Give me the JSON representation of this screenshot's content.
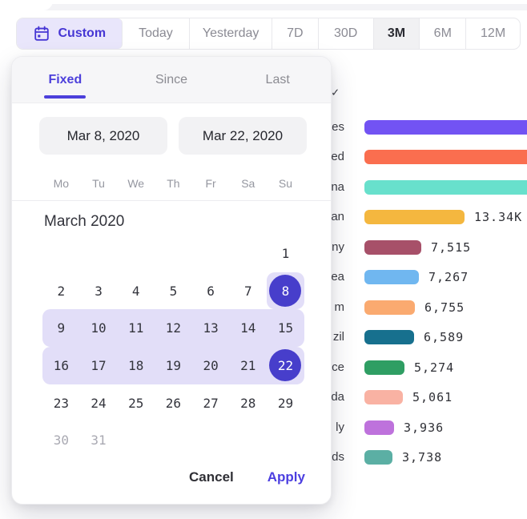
{
  "toolbar": {
    "custom_label": "Custom",
    "presets": [
      {
        "label": "Today",
        "active": false
      },
      {
        "label": "Yesterday",
        "active": false
      },
      {
        "label": "7D",
        "active": false
      },
      {
        "label": "30D",
        "active": false
      },
      {
        "label": "3M",
        "active": true
      },
      {
        "label": "6M",
        "active": false
      },
      {
        "label": "12M",
        "active": false
      }
    ]
  },
  "datepicker": {
    "tabs": [
      {
        "label": "Fixed",
        "active": true
      },
      {
        "label": "Since",
        "active": false
      },
      {
        "label": "Last",
        "active": false
      }
    ],
    "from_date": "Mar 8, 2020",
    "to_date": "Mar 22, 2020",
    "weekdays": [
      "Mo",
      "Tu",
      "We",
      "Th",
      "Fr",
      "Sa",
      "Su"
    ],
    "month_title": "March 2020",
    "weeks": [
      [
        null,
        null,
        null,
        null,
        null,
        null,
        1
      ],
      [
        2,
        3,
        4,
        5,
        6,
        7,
        8
      ],
      [
        9,
        10,
        11,
        12,
        13,
        14,
        15
      ],
      [
        16,
        17,
        18,
        19,
        20,
        21,
        22
      ],
      [
        23,
        24,
        25,
        26,
        27,
        28,
        29
      ],
      [
        30,
        31,
        null,
        null,
        null,
        null,
        null
      ]
    ],
    "selected_start": 8,
    "selected_end": 22,
    "muted_days": [
      30,
      31
    ],
    "cancel_label": "Cancel",
    "apply_label": "Apply"
  },
  "overflow_checkmark": "✓",
  "chart_data": {
    "type": "bar",
    "orientation": "horizontal",
    "note": "country list partially hidden behind datepicker popup; only label endings visible",
    "rows": [
      {
        "label_fragment": "es",
        "color": "#7253f3",
        "value_label": null,
        "value": null,
        "cut_off": true
      },
      {
        "label_fragment": "ed",
        "color": "#fa6e4f",
        "value_label": null,
        "value": null,
        "cut_off": true
      },
      {
        "label_fragment": "na",
        "color": "#68e0cc",
        "value_label": null,
        "value": null,
        "cut_off": true
      },
      {
        "label_fragment": "an",
        "color": "#f4b73f",
        "value_label": "13.34K",
        "value": 13340,
        "cut_off": false
      },
      {
        "label_fragment": "ny",
        "color": "#a75069",
        "value_label": "7,515",
        "value": 7515,
        "cut_off": false
      },
      {
        "label_fragment": "ea",
        "color": "#70b7f0",
        "value_label": "7,267",
        "value": 7267,
        "cut_off": false
      },
      {
        "label_fragment": "m",
        "color": "#faaa70",
        "value_label": "6,755",
        "value": 6755,
        "cut_off": false
      },
      {
        "label_fragment": "zil",
        "color": "#17708e",
        "value_label": "6,589",
        "value": 6589,
        "cut_off": false
      },
      {
        "label_fragment": "ce",
        "color": "#2f9e63",
        "value_label": "5,274",
        "value": 5274,
        "cut_off": false
      },
      {
        "label_fragment": "da",
        "color": "#f9b2a3",
        "value_label": "5,061",
        "value": 5061,
        "cut_off": false
      },
      {
        "label_fragment": "ly",
        "color": "#be72dc",
        "value_label": "3,936",
        "value": 3936,
        "cut_off": false
      },
      {
        "label_fragment": "ds",
        "color": "#5bafa4",
        "value_label": "3,738",
        "value": 3738,
        "cut_off": false
      }
    ]
  },
  "colors": {
    "accent_indigo": "#4c3fdb",
    "selected_circle": "#473ecb",
    "range_highlight": "#e2def8",
    "custom_chip_bg": "#e9e6fb",
    "tab_header_bg": "#f6f6f8",
    "input_bg": "#f2f2f4",
    "active_preset_bg": "#f1f1f3"
  }
}
